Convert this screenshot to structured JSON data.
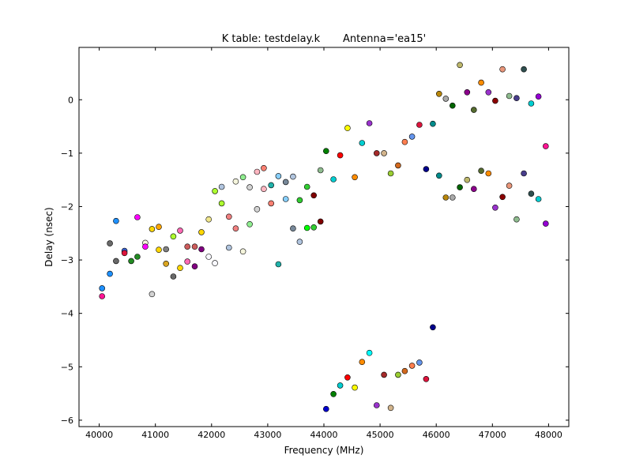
{
  "chart_data": {
    "type": "scatter",
    "title": "K table: testdelay.k       Antenna='ea15'",
    "xlabel": "Frequency (MHz)",
    "ylabel": "Delay (nsec)",
    "xlim": [
      39640,
      48360
    ],
    "ylim": [
      -6.12,
      0.98
    ],
    "xticks": [
      40000,
      41000,
      42000,
      43000,
      44000,
      45000,
      46000,
      47000,
      48000
    ],
    "xtick_labels": [
      "40000",
      "41000",
      "42000",
      "43000",
      "44000",
      "45000",
      "46000",
      "47000",
      "48000"
    ],
    "yticks": [
      0,
      -1,
      -2,
      -3,
      -4,
      -5,
      -6
    ],
    "ytick_labels": [
      "0",
      "−1",
      "−2",
      "−3",
      "−4",
      "−5",
      "−6"
    ],
    "grid": false,
    "points": [
      {
        "x": 40050,
        "y": -3.53,
        "color": "#1e90ff"
      },
      {
        "x": 40050,
        "y": -3.68,
        "color": "#ff1493"
      },
      {
        "x": 40190,
        "y": -2.69,
        "color": "#696969"
      },
      {
        "x": 40190,
        "y": -3.26,
        "color": "#1e90ff"
      },
      {
        "x": 40300,
        "y": -2.27,
        "color": "#1e90ff"
      },
      {
        "x": 40300,
        "y": -3.02,
        "color": "#696969"
      },
      {
        "x": 40450,
        "y": -2.83,
        "color": "#4169e1"
      },
      {
        "x": 40450,
        "y": -2.87,
        "color": "#dc143c"
      },
      {
        "x": 40570,
        "y": -3.02,
        "color": "#228b22"
      },
      {
        "x": 40680,
        "y": -2.2,
        "color": "#ff00ff"
      },
      {
        "x": 40680,
        "y": -2.94,
        "color": "#228b22"
      },
      {
        "x": 40820,
        "y": -2.68,
        "color": "#f5f5dc"
      },
      {
        "x": 40820,
        "y": -2.75,
        "color": "#ff00ff"
      },
      {
        "x": 40940,
        "y": -2.42,
        "color": "#ffd700"
      },
      {
        "x": 40940,
        "y": -3.64,
        "color": "#d3d3d3"
      },
      {
        "x": 41060,
        "y": -2.38,
        "color": "#ffa500"
      },
      {
        "x": 41060,
        "y": -2.81,
        "color": "#ffd700"
      },
      {
        "x": 41190,
        "y": -2.8,
        "color": "#808080"
      },
      {
        "x": 41190,
        "y": -3.07,
        "color": "#daa520"
      },
      {
        "x": 41320,
        "y": -2.56,
        "color": "#adff2f"
      },
      {
        "x": 41320,
        "y": -3.31,
        "color": "#696969"
      },
      {
        "x": 41440,
        "y": -2.45,
        "color": "#ff69b4"
      },
      {
        "x": 41440,
        "y": -3.15,
        "color": "#ffd700"
      },
      {
        "x": 41570,
        "y": -2.75,
        "color": "#cd5c5c"
      },
      {
        "x": 41570,
        "y": -3.03,
        "color": "#ff69b4"
      },
      {
        "x": 41700,
        "y": -2.75,
        "color": "#cd5c5c"
      },
      {
        "x": 41700,
        "y": -3.12,
        "color": "#800080"
      },
      {
        "x": 41820,
        "y": -2.48,
        "color": "#ffd700"
      },
      {
        "x": 41820,
        "y": -2.8,
        "color": "#800080"
      },
      {
        "x": 41950,
        "y": -2.24,
        "color": "#f0e68c"
      },
      {
        "x": 41950,
        "y": -2.94,
        "color": "#f8f8ff"
      },
      {
        "x": 42060,
        "y": -1.71,
        "color": "#adff2f"
      },
      {
        "x": 42060,
        "y": -3.06,
        "color": "#f8f8ff"
      },
      {
        "x": 42180,
        "y": -1.63,
        "color": "#b0c4de"
      },
      {
        "x": 42180,
        "y": -1.94,
        "color": "#adff2f"
      },
      {
        "x": 42310,
        "y": -2.19,
        "color": "#f08080"
      },
      {
        "x": 42310,
        "y": -2.77,
        "color": "#b0c4de"
      },
      {
        "x": 42430,
        "y": -1.53,
        "color": "#f5f5dc"
      },
      {
        "x": 42430,
        "y": -2.41,
        "color": "#f08080"
      },
      {
        "x": 42560,
        "y": -1.45,
        "color": "#90ee90"
      },
      {
        "x": 42560,
        "y": -2.84,
        "color": "#f5f5dc"
      },
      {
        "x": 42680,
        "y": -1.64,
        "color": "#d3d3d3"
      },
      {
        "x": 42680,
        "y": -2.33,
        "color": "#90ee90"
      },
      {
        "x": 42810,
        "y": -1.35,
        "color": "#ffb6c1"
      },
      {
        "x": 42810,
        "y": -2.05,
        "color": "#d3d3d3"
      },
      {
        "x": 42930,
        "y": -1.28,
        "color": "#fa8072"
      },
      {
        "x": 42930,
        "y": -1.67,
        "color": "#ffb6c1"
      },
      {
        "x": 43060,
        "y": -1.6,
        "color": "#20b2aa"
      },
      {
        "x": 43060,
        "y": -1.94,
        "color": "#fa8072"
      },
      {
        "x": 43190,
        "y": -1.43,
        "color": "#87cefa"
      },
      {
        "x": 43190,
        "y": -3.08,
        "color": "#20b2aa"
      },
      {
        "x": 43320,
        "y": -1.54,
        "color": "#778899"
      },
      {
        "x": 43320,
        "y": -1.86,
        "color": "#87cefa"
      },
      {
        "x": 43450,
        "y": -1.44,
        "color": "#b0c4de"
      },
      {
        "x": 43450,
        "y": -2.41,
        "color": "#778899"
      },
      {
        "x": 43570,
        "y": -1.88,
        "color": "#32cd32"
      },
      {
        "x": 43570,
        "y": -2.66,
        "color": "#b0c4de"
      },
      {
        "x": 43700,
        "y": -1.63,
        "color": "#32cd32"
      },
      {
        "x": 43700,
        "y": -2.4,
        "color": "#00ff00"
      },
      {
        "x": 43820,
        "y": -1.79,
        "color": "#800000"
      },
      {
        "x": 43820,
        "y": -2.39,
        "color": "#32cd32"
      },
      {
        "x": 43940,
        "y": -1.32,
        "color": "#8fbc8f"
      },
      {
        "x": 43940,
        "y": -2.28,
        "color": "#800000"
      },
      {
        "x": 44040,
        "y": -0.96,
        "color": "#008000"
      },
      {
        "x": 44040,
        "y": -5.79,
        "color": "#0000cd"
      },
      {
        "x": 44170,
        "y": -1.49,
        "color": "#00ced1"
      },
      {
        "x": 44170,
        "y": -5.51,
        "color": "#008000"
      },
      {
        "x": 44290,
        "y": -1.04,
        "color": "#ff0000"
      },
      {
        "x": 44290,
        "y": -5.35,
        "color": "#00ced1"
      },
      {
        "x": 44420,
        "y": -0.53,
        "color": "#ffff00"
      },
      {
        "x": 44420,
        "y": -5.2,
        "color": "#ff0000"
      },
      {
        "x": 44550,
        "y": -1.45,
        "color": "#ff8c00"
      },
      {
        "x": 44550,
        "y": -5.39,
        "color": "#ffff00"
      },
      {
        "x": 44680,
        "y": -0.81,
        "color": "#00ced1"
      },
      {
        "x": 44680,
        "y": -4.91,
        "color": "#ff8c00"
      },
      {
        "x": 44810,
        "y": -0.44,
        "color": "#9932cc"
      },
      {
        "x": 44810,
        "y": -4.74,
        "color": "#00ffff"
      },
      {
        "x": 44940,
        "y": -1.0,
        "color": "#a52a2a"
      },
      {
        "x": 44940,
        "y": -5.72,
        "color": "#9932cc"
      },
      {
        "x": 45070,
        "y": -1.0,
        "color": "#d2b48c"
      },
      {
        "x": 45070,
        "y": -5.15,
        "color": "#a52a2a"
      },
      {
        "x": 45190,
        "y": -1.38,
        "color": "#9acd32"
      },
      {
        "x": 45190,
        "y": -5.77,
        "color": "#d2b48c"
      },
      {
        "x": 45320,
        "y": -1.23,
        "color": "#d2691e"
      },
      {
        "x": 45320,
        "y": -5.15,
        "color": "#9acd32"
      },
      {
        "x": 45440,
        "y": -0.79,
        "color": "#ff7f50"
      },
      {
        "x": 45440,
        "y": -5.08,
        "color": "#d2691e"
      },
      {
        "x": 45570,
        "y": -0.69,
        "color": "#6495ed"
      },
      {
        "x": 45570,
        "y": -4.98,
        "color": "#ff7f50"
      },
      {
        "x": 45700,
        "y": -0.47,
        "color": "#dc143c"
      },
      {
        "x": 45700,
        "y": -4.92,
        "color": "#6495ed"
      },
      {
        "x": 45820,
        "y": -1.3,
        "color": "#00008b"
      },
      {
        "x": 45820,
        "y": -5.23,
        "color": "#dc143c"
      },
      {
        "x": 45940,
        "y": -0.45,
        "color": "#008b8b"
      },
      {
        "x": 45940,
        "y": -4.26,
        "color": "#00008b"
      },
      {
        "x": 46050,
        "y": 0.11,
        "color": "#b8860b"
      },
      {
        "x": 46050,
        "y": -1.42,
        "color": "#008b8b"
      },
      {
        "x": 46170,
        "y": 0.02,
        "color": "#a9a9a9"
      },
      {
        "x": 46170,
        "y": -1.83,
        "color": "#b8860b"
      },
      {
        "x": 46290,
        "y": -0.11,
        "color": "#006400"
      },
      {
        "x": 46290,
        "y": -1.83,
        "color": "#a9a9a9"
      },
      {
        "x": 46420,
        "y": 0.65,
        "color": "#bdb76b"
      },
      {
        "x": 46420,
        "y": -1.64,
        "color": "#006400"
      },
      {
        "x": 46550,
        "y": 0.14,
        "color": "#8b008b"
      },
      {
        "x": 46550,
        "y": -1.5,
        "color": "#bdb76b"
      },
      {
        "x": 46670,
        "y": -0.19,
        "color": "#556b2f"
      },
      {
        "x": 46670,
        "y": -1.67,
        "color": "#8b008b"
      },
      {
        "x": 46800,
        "y": 0.32,
        "color": "#ff8c00"
      },
      {
        "x": 46800,
        "y": -1.33,
        "color": "#556b2f"
      },
      {
        "x": 46930,
        "y": 0.14,
        "color": "#9932cc"
      },
      {
        "x": 46930,
        "y": -1.38,
        "color": "#ff8c00"
      },
      {
        "x": 47050,
        "y": -0.02,
        "color": "#8b0000"
      },
      {
        "x": 47050,
        "y": -2.02,
        "color": "#9932cc"
      },
      {
        "x": 47180,
        "y": 0.57,
        "color": "#e9967a"
      },
      {
        "x": 47180,
        "y": -1.82,
        "color": "#8b0000"
      },
      {
        "x": 47300,
        "y": 0.07,
        "color": "#8fbc8f"
      },
      {
        "x": 47300,
        "y": -1.61,
        "color": "#e9967a"
      },
      {
        "x": 47430,
        "y": 0.03,
        "color": "#483d8b"
      },
      {
        "x": 47430,
        "y": -2.24,
        "color": "#8fbc8f"
      },
      {
        "x": 47560,
        "y": 0.57,
        "color": "#2f4f4f"
      },
      {
        "x": 47560,
        "y": -1.38,
        "color": "#483d8b"
      },
      {
        "x": 47690,
        "y": -0.07,
        "color": "#00ced1"
      },
      {
        "x": 47690,
        "y": -1.76,
        "color": "#2f4f4f"
      },
      {
        "x": 47820,
        "y": 0.06,
        "color": "#9400d3"
      },
      {
        "x": 47820,
        "y": -1.86,
        "color": "#00ced1"
      },
      {
        "x": 47950,
        "y": -0.87,
        "color": "#ff1493"
      },
      {
        "x": 47950,
        "y": -2.32,
        "color": "#9400d3"
      }
    ]
  }
}
